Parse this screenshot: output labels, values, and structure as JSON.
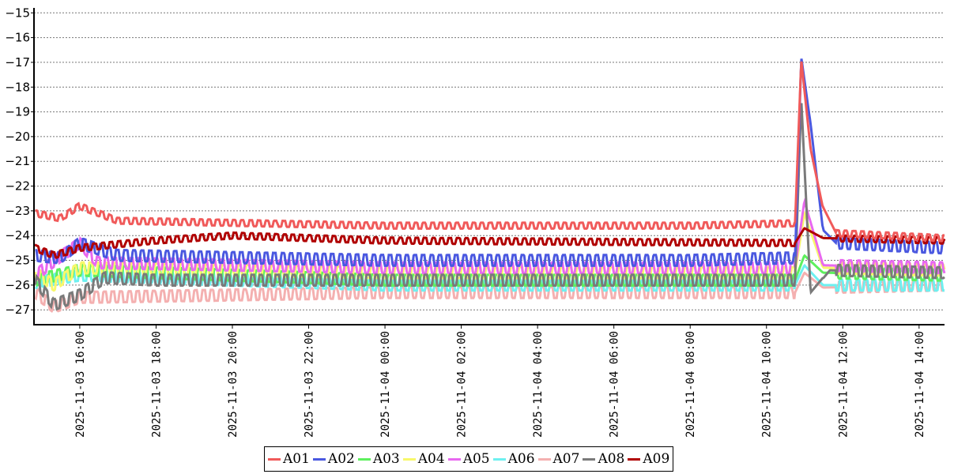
{
  "chart_data": {
    "type": "line",
    "title": "",
    "xlabel": "",
    "ylabel": "",
    "ylim": [
      -27.6,
      -14.8
    ],
    "yticks": [
      -15,
      -16,
      -17,
      -18,
      -19,
      -20,
      -21,
      -22,
      -23,
      -24,
      -25,
      -26,
      -27
    ],
    "ytick_labels": [
      "−15",
      "−16",
      "−17",
      "−18",
      "−19",
      "−20",
      "−21",
      "−22",
      "−23",
      "−24",
      "−25",
      "−26",
      "−27"
    ],
    "xlim": [
      "2025-11-03 14:48",
      "2025-11-04 14:40"
    ],
    "xticks": [
      "2025-11-03 16:00",
      "2025-11-03 18:00",
      "2025-11-03 20:00",
      "2025-11-03 22:00",
      "2025-11-04 00:00",
      "2025-11-04 02:00",
      "2025-11-04 04:00",
      "2025-11-04 06:00",
      "2025-11-04 08:00",
      "2025-11-04 10:00",
      "2025-11-04 12:00",
      "2025-11-04 14:00"
    ],
    "xtick_labels": [
      "2025-11-03  16:00",
      "2025-11-03  18:00",
      "2025-11-03  20:00",
      "2025-11-03  22:00",
      "2025-11-04  00:00",
      "2025-11-04  02:00",
      "2025-11-04  04:00",
      "2025-11-04  06:00",
      "2025-11-04  08:00",
      "2025-11-04  10:00",
      "2025-11-04  12:00",
      "2025-11-04  14:00"
    ],
    "grid": "horizontal dotted",
    "legend_position": "bottom",
    "series": [
      {
        "name": "A01",
        "color": "#f05a5a",
        "points": [
          [
            "2025-11-03 14:50",
            -23.1
          ],
          [
            "2025-11-03 15:30",
            -23.3
          ],
          [
            "2025-11-03 16:00",
            -22.8
          ],
          [
            "2025-11-03 17:00",
            -23.4
          ],
          [
            "2025-11-04 00:00",
            -23.6
          ],
          [
            "2025-11-04 08:00",
            -23.6
          ],
          [
            "2025-11-04 10:45",
            -23.5
          ],
          [
            "2025-11-04 10:55",
            -16.9
          ],
          [
            "2025-11-04 11:10",
            -20.5
          ],
          [
            "2025-11-04 11:30",
            -22.9
          ],
          [
            "2025-11-04 11:50",
            -23.9
          ],
          [
            "2025-11-04 14:40",
            -24.1
          ]
        ]
      },
      {
        "name": "A02",
        "color": "#4a58e0",
        "points": [
          [
            "2025-11-03 14:50",
            -24.8
          ],
          [
            "2025-11-03 15:30",
            -24.9
          ],
          [
            "2025-11-03 16:00",
            -24.3
          ],
          [
            "2025-11-03 17:00",
            -24.8
          ],
          [
            "2025-11-04 00:00",
            -25.0
          ],
          [
            "2025-11-04 08:00",
            -25.0
          ],
          [
            "2025-11-04 10:45",
            -24.9
          ],
          [
            "2025-11-04 10:55",
            -16.8
          ],
          [
            "2025-11-04 11:10",
            -19.5
          ],
          [
            "2025-11-04 11:30",
            -23.8
          ],
          [
            "2025-11-04 11:50",
            -24.3
          ],
          [
            "2025-11-04 14:40",
            -24.5
          ]
        ]
      },
      {
        "name": "A03",
        "color": "#5ef05e",
        "points": [
          [
            "2025-11-03 14:50",
            -25.8
          ],
          [
            "2025-11-03 16:00",
            -25.4
          ],
          [
            "2025-11-04 00:00",
            -25.8
          ],
          [
            "2025-11-04 10:45",
            -25.8
          ],
          [
            "2025-11-04 11:00",
            -24.8
          ],
          [
            "2025-11-04 11:30",
            -25.5
          ],
          [
            "2025-11-04 14:40",
            -25.6
          ]
        ]
      },
      {
        "name": "A04",
        "color": "#f8f86a",
        "points": [
          [
            "2025-11-03 14:50",
            -25.5
          ],
          [
            "2025-11-03 15:20",
            -26.0
          ],
          [
            "2025-11-03 16:00",
            -25.3
          ],
          [
            "2025-11-04 00:00",
            -25.5
          ],
          [
            "2025-11-04 10:45",
            -25.5
          ],
          [
            "2025-11-04 11:00",
            -23.1
          ],
          [
            "2025-11-04 11:30",
            -25.3
          ],
          [
            "2025-11-04 14:40",
            -25.4
          ]
        ]
      },
      {
        "name": "A05",
        "color": "#e868f0",
        "points": [
          [
            "2025-11-03 14:50",
            -25.6
          ],
          [
            "2025-11-03 16:00",
            -24.3
          ],
          [
            "2025-11-03 16:30",
            -25.1
          ],
          [
            "2025-11-04 00:00",
            -25.3
          ],
          [
            "2025-11-04 10:45",
            -25.3
          ],
          [
            "2025-11-04 11:00",
            -22.6
          ],
          [
            "2025-11-04 11:30",
            -25.2
          ],
          [
            "2025-11-04 14:40",
            -25.3
          ]
        ]
      },
      {
        "name": "A06",
        "color": "#6ef0f0",
        "points": [
          [
            "2025-11-03 14:50",
            -25.9
          ],
          [
            "2025-11-03 16:00",
            -25.6
          ],
          [
            "2025-11-04 00:00",
            -26.0
          ],
          [
            "2025-11-04 10:45",
            -26.0
          ],
          [
            "2025-11-04 11:00",
            -25.2
          ],
          [
            "2025-11-04 11:30",
            -26.0
          ],
          [
            "2025-11-04 14:40",
            -26.0
          ]
        ]
      },
      {
        "name": "A07",
        "color": "#f4b0b0",
        "points": [
          [
            "2025-11-03 14:50",
            -26.3
          ],
          [
            "2025-11-03 15:20",
            -26.9
          ],
          [
            "2025-11-03 16:00",
            -26.5
          ],
          [
            "2025-11-04 00:00",
            -26.3
          ],
          [
            "2025-11-04 10:45",
            -26.3
          ],
          [
            "2025-11-04 11:00",
            -25.5
          ],
          [
            "2025-11-04 11:30",
            -26.1
          ],
          [
            "2025-11-04 14:40",
            -26.0
          ]
        ]
      },
      {
        "name": "A08",
        "color": "#7a7a7a",
        "points": [
          [
            "2025-11-03 14:50",
            -25.8
          ],
          [
            "2025-11-03 15:20",
            -26.8
          ],
          [
            "2025-11-03 16:00",
            -26.4
          ],
          [
            "2025-11-03 16:40",
            -25.7
          ],
          [
            "2025-11-03 18:00",
            -25.8
          ],
          [
            "2025-11-04 10:45",
            -25.8
          ],
          [
            "2025-11-04 10:55",
            -18.5
          ],
          [
            "2025-11-04 11:10",
            -26.3
          ],
          [
            "2025-11-04 11:40",
            -25.4
          ],
          [
            "2025-11-04 14:40",
            -25.5
          ]
        ]
      },
      {
        "name": "A09",
        "color": "#b00000",
        "points": [
          [
            "2025-11-03 14:50",
            -24.5
          ],
          [
            "2025-11-03 15:20",
            -24.8
          ],
          [
            "2025-11-03 16:00",
            -24.5
          ],
          [
            "2025-11-03 18:00",
            -24.2
          ],
          [
            "2025-11-03 20:00",
            -24.0
          ],
          [
            "2025-11-04 00:00",
            -24.2
          ],
          [
            "2025-11-04 10:45",
            -24.3
          ],
          [
            "2025-11-04 11:00",
            -23.7
          ],
          [
            "2025-11-04 11:30",
            -24.1
          ],
          [
            "2025-11-04 14:40",
            -24.2
          ]
        ]
      }
    ]
  }
}
